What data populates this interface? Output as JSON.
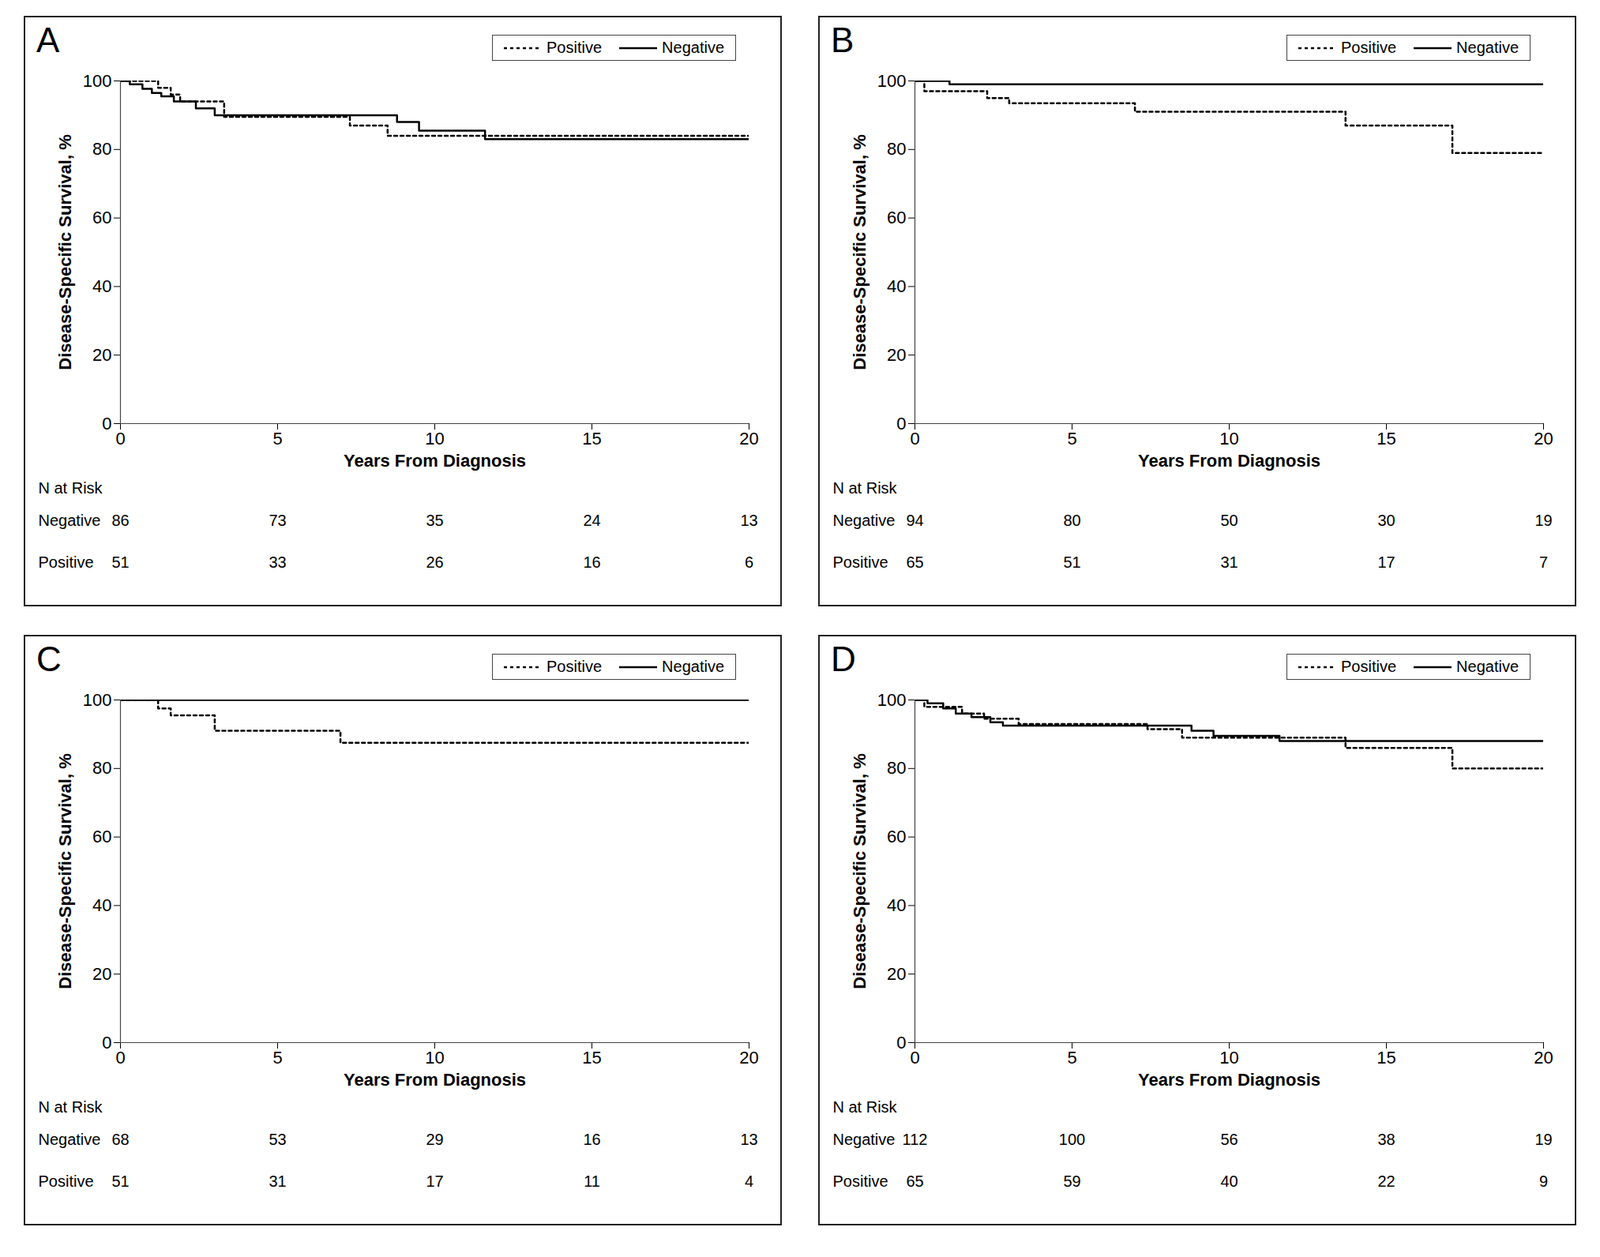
{
  "chart_data": [
    {
      "type": "step",
      "title": "A",
      "x_label": "Years From Diagnosis",
      "y_label": "Disease-Specific Survival, %",
      "xlim": [
        0,
        20
      ],
      "ylim": [
        0,
        100
      ],
      "xticks": [
        0,
        5,
        10,
        15,
        20
      ],
      "yticks": [
        0,
        20,
        40,
        60,
        80,
        100
      ],
      "legend": "top right",
      "series": [
        {
          "name": "Positive",
          "color": "#000000",
          "line_style": "dotted",
          "x": [
            0,
            1.2,
            1.6,
            1.9,
            3.3,
            7.3,
            8.5,
            20
          ],
          "values": [
            100,
            98,
            96,
            94,
            89.5,
            87,
            84,
            84
          ]
        },
        {
          "name": "Negative",
          "color": "#000000",
          "line_style": "solid",
          "x": [
            0,
            0.3,
            0.7,
            1.0,
            1.3,
            1.7,
            2.4,
            3.0,
            8.8,
            9.5,
            11.6,
            20
          ],
          "values": [
            100,
            99,
            97.7,
            96.5,
            95.5,
            94,
            92,
            90,
            88,
            85.5,
            83,
            83
          ]
        }
      ],
      "risk_table": {
        "title": "N at Risk",
        "x": [
          0,
          5,
          10,
          15,
          20
        ],
        "rows": [
          {
            "name": "Negative",
            "values": [
              86,
              73,
              35,
              24,
              13
            ]
          },
          {
            "name": "Positive",
            "values": [
              51,
              33,
              26,
              16,
              6
            ]
          }
        ]
      }
    },
    {
      "type": "step",
      "title": "B",
      "x_label": "Years From Diagnosis",
      "y_label": "Disease-Specific Survival, %",
      "xlim": [
        0,
        20
      ],
      "ylim": [
        0,
        100
      ],
      "xticks": [
        0,
        5,
        10,
        15,
        20
      ],
      "yticks": [
        0,
        20,
        40,
        60,
        80,
        100
      ],
      "legend": "top right",
      "series": [
        {
          "name": "Positive",
          "color": "#000000",
          "line_style": "dotted",
          "x": [
            0,
            0.3,
            2.3,
            3.0,
            7.0,
            13.7,
            17.1,
            20
          ],
          "values": [
            100,
            97,
            95,
            93.5,
            91,
            87,
            79,
            79
          ]
        },
        {
          "name": "Negative",
          "color": "#000000",
          "line_style": "solid",
          "x": [
            0,
            1.1,
            20
          ],
          "values": [
            100,
            99,
            99
          ]
        }
      ],
      "risk_table": {
        "title": "N at Risk",
        "x": [
          0,
          5,
          10,
          15,
          20
        ],
        "rows": [
          {
            "name": "Negative",
            "values": [
              94,
              80,
              50,
              30,
              19
            ]
          },
          {
            "name": "Positive",
            "values": [
              65,
              51,
              31,
              17,
              7
            ]
          }
        ]
      }
    },
    {
      "type": "step",
      "title": "C",
      "x_label": "Years From Diagnosis",
      "y_label": "Disease-Specific Survival, %",
      "xlim": [
        0,
        20
      ],
      "ylim": [
        0,
        100
      ],
      "xticks": [
        0,
        5,
        10,
        15,
        20
      ],
      "yticks": [
        0,
        20,
        40,
        60,
        80,
        100
      ],
      "legend": "top right",
      "series": [
        {
          "name": "Positive",
          "color": "#000000",
          "line_style": "dotted",
          "x": [
            0,
            1.2,
            1.6,
            3.0,
            7.0,
            20
          ],
          "values": [
            100,
            97.5,
            95.5,
            91,
            87.5,
            87.5
          ]
        },
        {
          "name": "Negative",
          "color": "#000000",
          "line_style": "solid",
          "x": [
            0,
            20
          ],
          "values": [
            100,
            100
          ]
        }
      ],
      "risk_table": {
        "title": "N at Risk",
        "x": [
          0,
          5,
          10,
          15,
          20
        ],
        "rows": [
          {
            "name": "Negative",
            "values": [
              68,
              53,
              29,
              16,
              13
            ]
          },
          {
            "name": "Positive",
            "values": [
              51,
              31,
              17,
              11,
              4
            ]
          }
        ]
      }
    },
    {
      "type": "step",
      "title": "D",
      "x_label": "Years From Diagnosis",
      "y_label": "Disease-Specific Survival, %",
      "xlim": [
        0,
        20
      ],
      "ylim": [
        0,
        100
      ],
      "xticks": [
        0,
        5,
        10,
        15,
        20
      ],
      "yticks": [
        0,
        20,
        40,
        60,
        80,
        100
      ],
      "legend": "top right",
      "series": [
        {
          "name": "Positive",
          "color": "#000000",
          "line_style": "dotted",
          "x": [
            0,
            0.3,
            1.5,
            2.2,
            3.3,
            7.4,
            8.5,
            13.7,
            17.1,
            20
          ],
          "values": [
            100,
            98,
            96,
            94.5,
            93,
            91.5,
            89,
            86,
            80,
            80
          ]
        },
        {
          "name": "Negative",
          "color": "#000000",
          "line_style": "solid",
          "x": [
            0,
            0.4,
            0.9,
            1.3,
            1.8,
            2.4,
            2.8,
            8.8,
            9.5,
            11.6,
            20
          ],
          "values": [
            100,
            99,
            97.5,
            96,
            95,
            93.5,
            92.5,
            91,
            89.5,
            88,
            88
          ]
        }
      ],
      "risk_table": {
        "title": "N at Risk",
        "x": [
          0,
          5,
          10,
          15,
          20
        ],
        "rows": [
          {
            "name": "Negative",
            "values": [
              112,
              100,
              56,
              38,
              19
            ]
          },
          {
            "name": "Positive",
            "values": [
              65,
              59,
              40,
              22,
              9
            ]
          }
        ]
      }
    }
  ]
}
